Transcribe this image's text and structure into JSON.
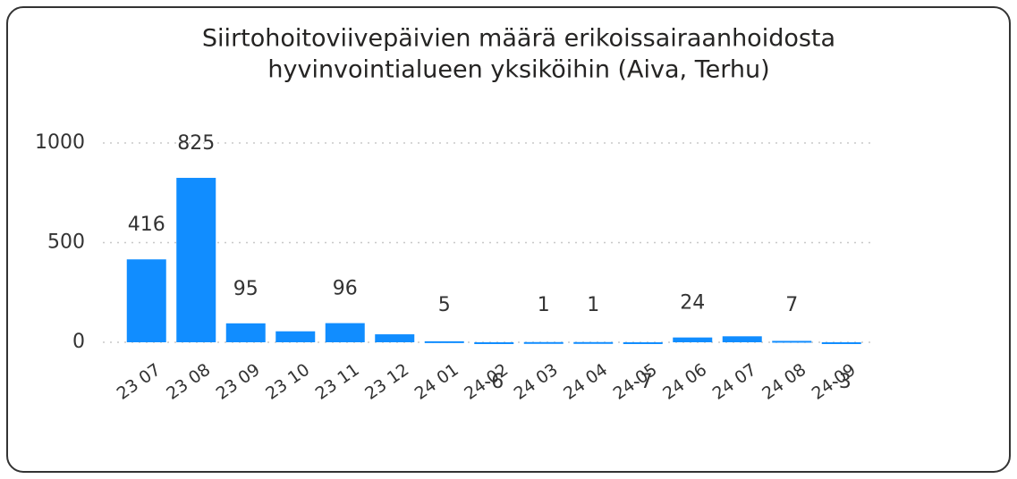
{
  "chart_data": {
    "type": "bar",
    "title": [
      "Siirtohoitoviivepäivien määrä erikoissairaanhoidosta",
      "hyvinvointialueen yksiköihin (Aiva, Terhu)"
    ],
    "categories": [
      "23 07",
      "23 08",
      "23 09",
      "23 10",
      "23 11",
      "23 12",
      "24 01",
      "24 02",
      "24 03",
      "24 04",
      "24 05",
      "24 06",
      "24 07",
      "24 08",
      "24 09"
    ],
    "values": [
      416,
      825,
      95,
      55,
      96,
      40,
      5,
      -6,
      1,
      1,
      -7,
      24,
      30,
      7,
      -3
    ],
    "value_labels": [
      "416",
      "825",
      "95",
      null,
      "96",
      null,
      "5",
      "-6",
      "1",
      "1",
      "-7",
      "24",
      null,
      "7",
      "-3"
    ],
    "color": "#118DFF",
    "ylim": [
      -200,
      1000
    ],
    "yticks": [
      0,
      500,
      1000
    ],
    "grid": true
  }
}
